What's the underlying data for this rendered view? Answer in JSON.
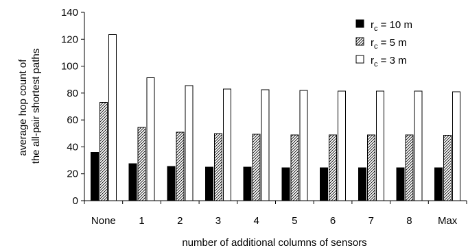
{
  "chart_data": {
    "type": "bar",
    "title": "",
    "xlabel": "number of additional columns of sensors",
    "ylabel": [
      "average hop count of",
      "the all-pair shortest paths"
    ],
    "categories": [
      "None",
      "1",
      "2",
      "3",
      "4",
      "5",
      "6",
      "7",
      "8",
      "Max"
    ],
    "ylim": [
      0,
      140
    ],
    "yticks": [
      0,
      20,
      40,
      60,
      80,
      100,
      120,
      140
    ],
    "grid": false,
    "legend_position": "top-right",
    "series": [
      {
        "name": "r_c = 10 m",
        "name_main": "r",
        "name_sub": "c",
        "name_rest": " = 10 m",
        "fill": "solid-black",
        "values": [
          36,
          27.5,
          25.5,
          25,
          25,
          24.5,
          24.5,
          24.5,
          24.5,
          24.5
        ]
      },
      {
        "name": "r_c = 5 m",
        "name_main": "r",
        "name_sub": "c",
        "name_rest": " = 5 m",
        "fill": "diagonal-hatch",
        "values": [
          73,
          54.5,
          51,
          50,
          49.5,
          49,
          49,
          49,
          49,
          48.5
        ]
      },
      {
        "name": "r_c = 3 m",
        "name_main": "r",
        "name_sub": "c",
        "name_rest": " = 3 m",
        "fill": "white",
        "values": [
          123.5,
          91.5,
          85.5,
          83,
          82.5,
          82,
          81.5,
          81.5,
          81.5,
          81
        ]
      }
    ]
  }
}
